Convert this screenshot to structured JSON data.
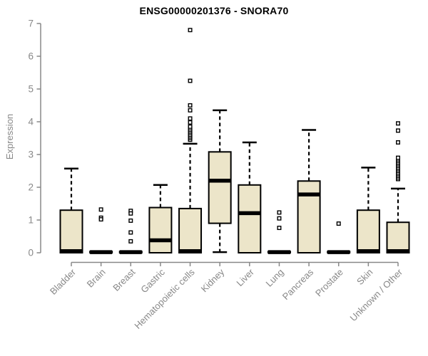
{
  "chart_data": {
    "type": "boxplot",
    "title": "ENSG00000201376 - SNORA70",
    "ylabel": "Expression",
    "xlabel": "",
    "ylim": [
      0,
      7
    ],
    "yticks": [
      0,
      1,
      2,
      3,
      4,
      5,
      6,
      7
    ],
    "legend": "none",
    "grid": false,
    "colors": {
      "box_fill": "#ece5c9",
      "box_stroke": "#000000",
      "axis_color": "#888888",
      "label_color": "#888888",
      "title_color": "#000000",
      "background": "#ffffff"
    },
    "categories": [
      {
        "label": "Bladder",
        "q1": 0,
        "median": 0.05,
        "q3": 1.3,
        "whisker_low": 0,
        "whisker_high": 2.57,
        "outliers": []
      },
      {
        "label": "Brain",
        "q1": 0,
        "median": 0.02,
        "q3": 0.04,
        "whisker_low": 0,
        "whisker_high": 0.04,
        "outliers": [
          1.32,
          1.07,
          1.02
        ]
      },
      {
        "label": "Breast",
        "q1": 0,
        "median": 0.02,
        "q3": 0.04,
        "whisker_low": 0,
        "whisker_high": 0.04,
        "outliers": [
          1.28,
          1.2,
          0.98,
          0.62,
          0.35
        ]
      },
      {
        "label": "Gastric",
        "q1": 0,
        "median": 0.38,
        "q3": 1.38,
        "whisker_low": 0,
        "whisker_high": 2.07,
        "outliers": []
      },
      {
        "label": "Hematopoietic cells",
        "q1": 0,
        "median": 0.05,
        "q3": 1.35,
        "whisker_low": 0,
        "whisker_high": 3.33,
        "outliers": [
          3.45,
          3.5,
          3.55,
          3.6,
          3.65,
          3.7,
          3.75,
          3.8,
          3.85,
          3.98,
          4.1,
          4.35,
          4.5,
          5.25,
          6.8
        ]
      },
      {
        "label": "Kidney",
        "q1": 0.9,
        "median": 2.2,
        "q3": 3.08,
        "whisker_low": 0.02,
        "whisker_high": 4.35,
        "outliers": []
      },
      {
        "label": "Liver",
        "q1": 0,
        "median": 1.21,
        "q3": 2.07,
        "whisker_low": 0,
        "whisker_high": 3.37,
        "outliers": []
      },
      {
        "label": "Lung",
        "q1": 0,
        "median": 0.02,
        "q3": 0.04,
        "whisker_low": 0,
        "whisker_high": 0.04,
        "outliers": [
          1.23,
          1.05,
          0.76
        ]
      },
      {
        "label": "Pancreas",
        "q1": 0,
        "median": 1.78,
        "q3": 2.19,
        "whisker_low": 0,
        "whisker_high": 3.75,
        "outliers": []
      },
      {
        "label": "Prostate",
        "q1": 0,
        "median": 0.02,
        "q3": 0.04,
        "whisker_low": 0,
        "whisker_high": 0.04,
        "outliers": [
          0.89
        ]
      },
      {
        "label": "Skin",
        "q1": 0,
        "median": 0.05,
        "q3": 1.3,
        "whisker_low": 0,
        "whisker_high": 2.6,
        "outliers": []
      },
      {
        "label": "Unknown / Other",
        "q1": 0,
        "median": 0.05,
        "q3": 0.93,
        "whisker_low": 0,
        "whisker_high": 1.96,
        "outliers": [
          2.25,
          2.3,
          2.35,
          2.4,
          2.45,
          2.5,
          2.55,
          2.6,
          2.65,
          2.7,
          2.75,
          2.8,
          2.85,
          2.9,
          3.37,
          3.73,
          3.95
        ]
      }
    ]
  }
}
